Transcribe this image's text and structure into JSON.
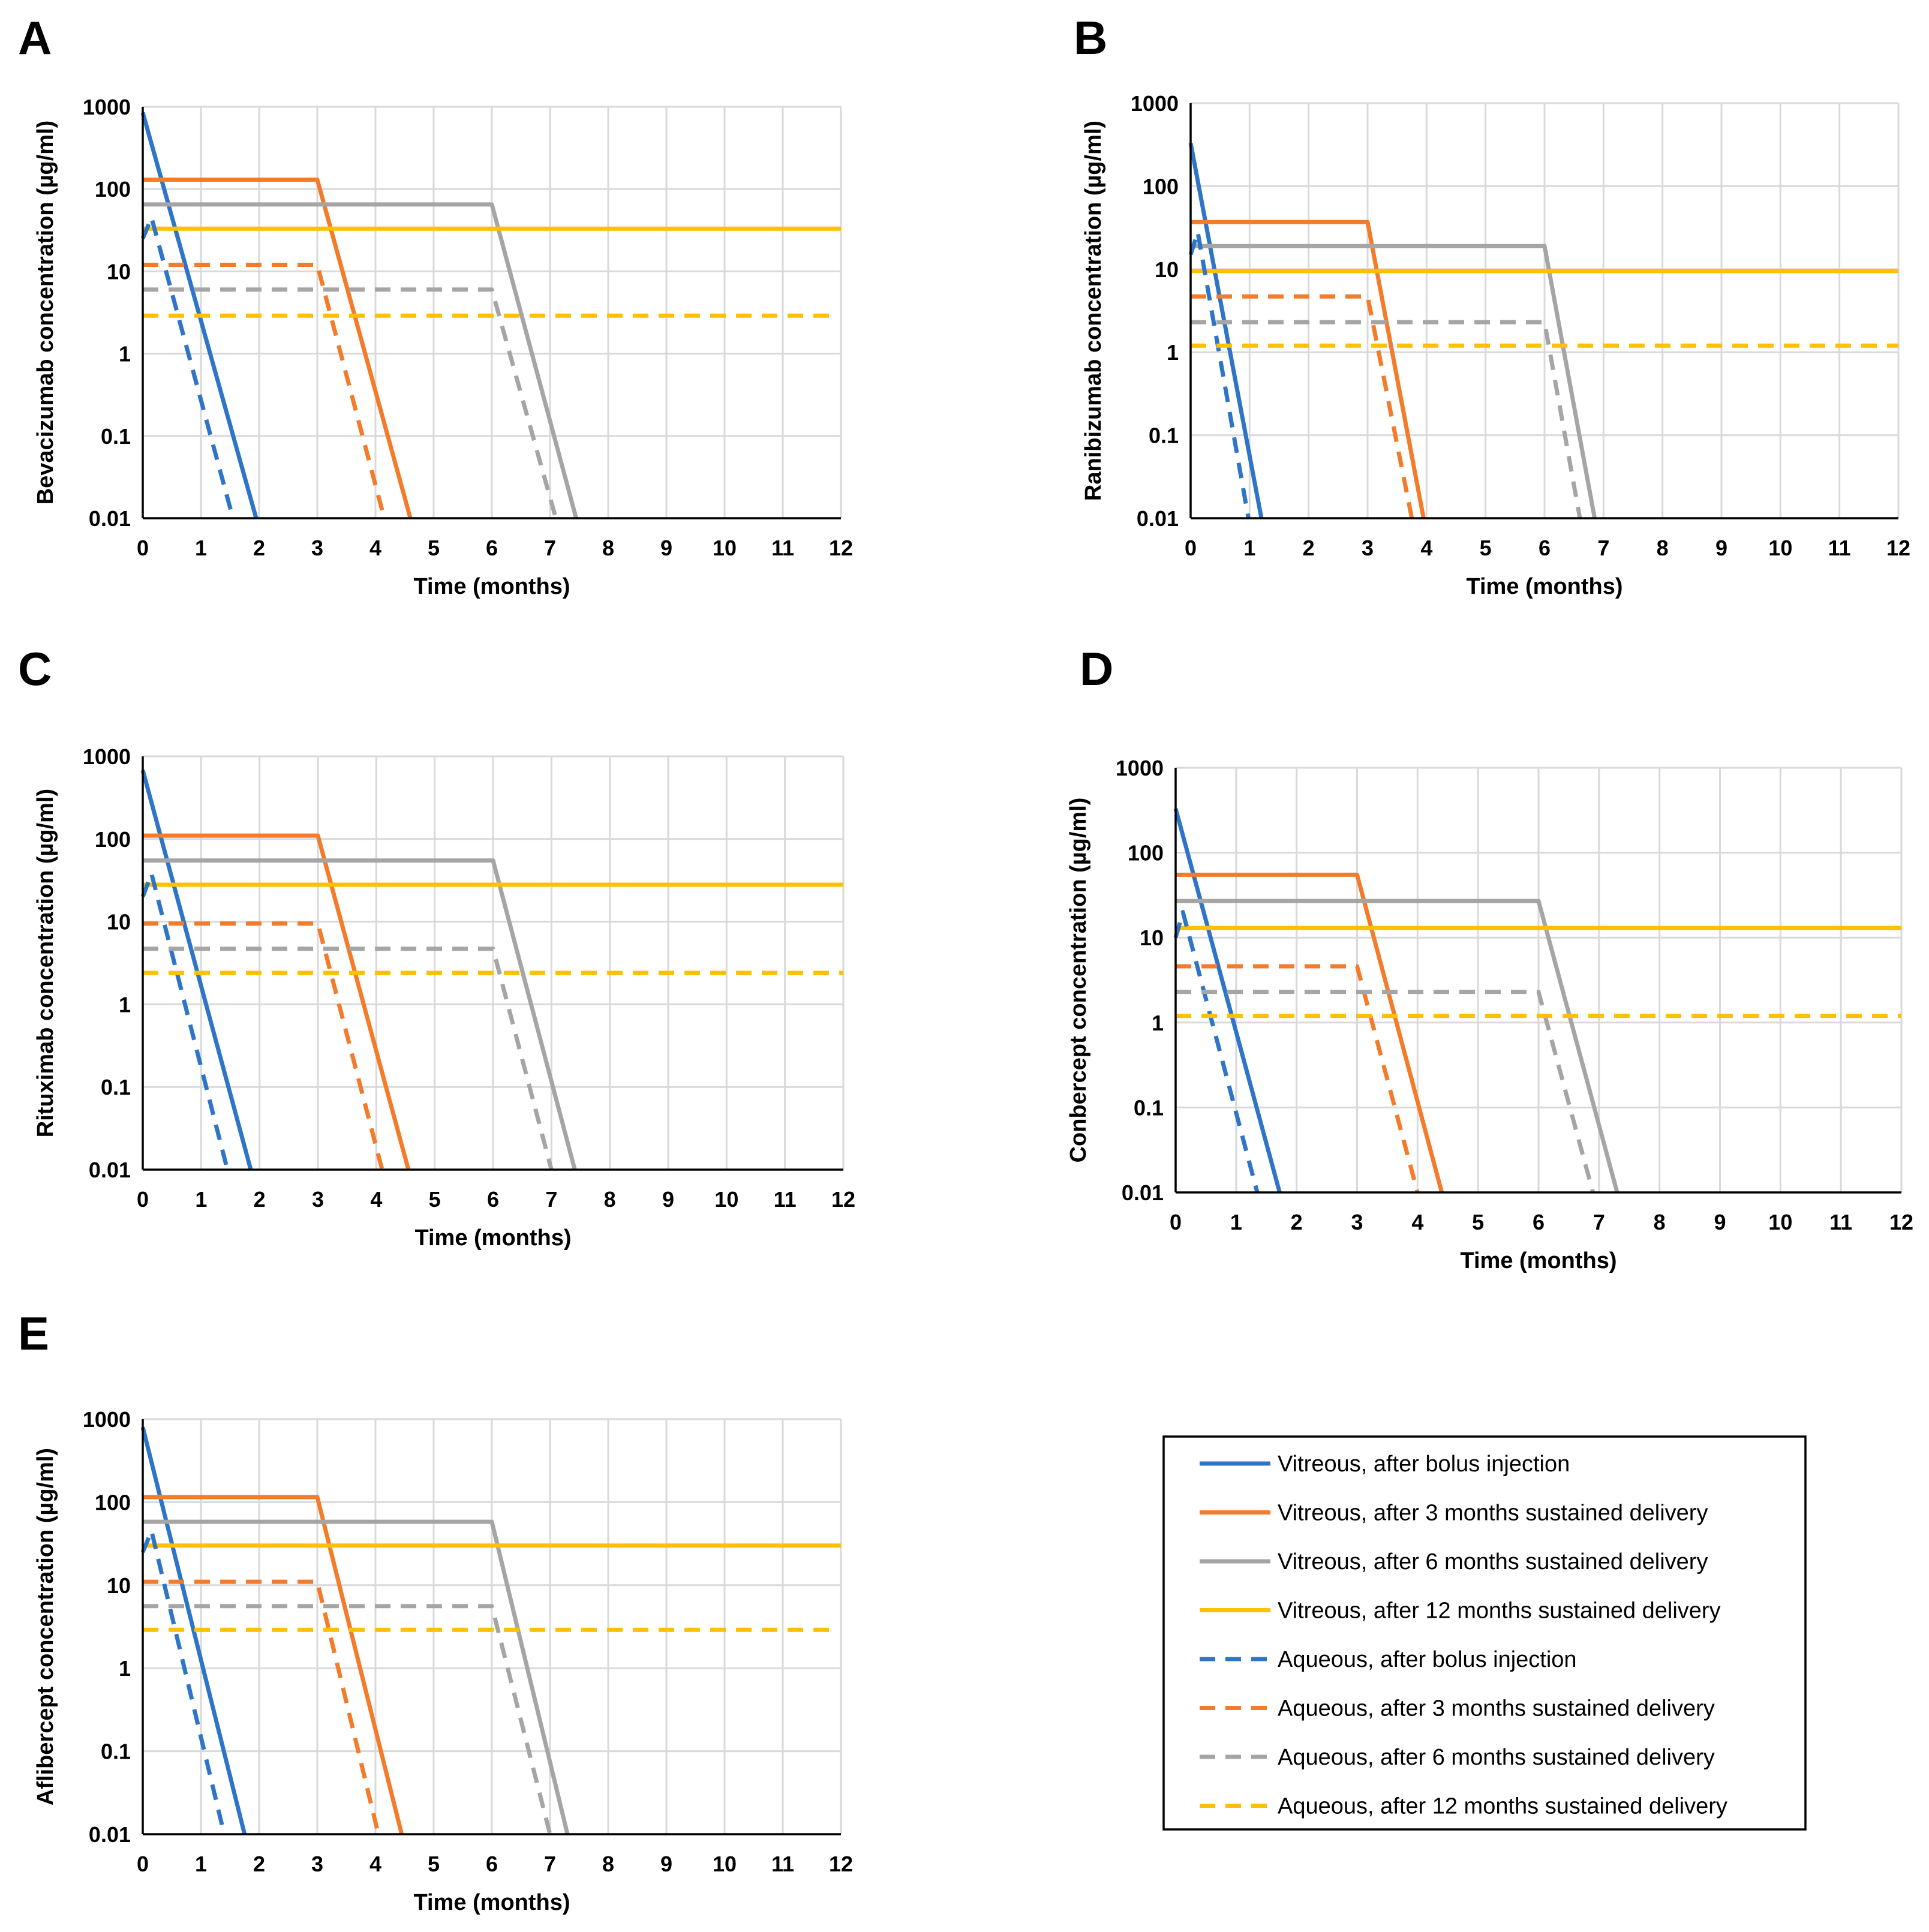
{
  "colors": {
    "blue": "#2e75c8",
    "orange": "#f37b2a",
    "gray": "#a5a5a5",
    "yellow": "#fec000"
  },
  "legend": [
    {
      "label": "Vitreous, after bolus injection",
      "color": "blue",
      "dashed": false
    },
    {
      "label": "Vitreous, after 3 months sustained delivery",
      "color": "orange",
      "dashed": false
    },
    {
      "label": "Vitreous, after 6 months sustained delivery",
      "color": "gray",
      "dashed": false
    },
    {
      "label": "Vitreous, after 12 months sustained delivery",
      "color": "yellow",
      "dashed": false
    },
    {
      "label": "Aqueous, after bolus injection",
      "color": "blue",
      "dashed": true
    },
    {
      "label": "Aqueous, after 3 months sustained delivery",
      "color": "orange",
      "dashed": true
    },
    {
      "label": "Aqueous, after 6 months sustained delivery",
      "color": "gray",
      "dashed": true
    },
    {
      "label": "Aqueous, after 12 months sustained delivery",
      "color": "yellow",
      "dashed": true
    }
  ],
  "chart_data": [
    {
      "panel": "A",
      "type": "line",
      "xlabel": "Time (months)",
      "ylabel": "Bevacizumab concentration (µg/ml)",
      "xlim": [
        0,
        12
      ],
      "ylim": [
        0.01,
        1000
      ],
      "yscale": "log",
      "grid": true,
      "xticks": [
        "0",
        "1",
        "2",
        "3",
        "4",
        "5",
        "6",
        "7",
        "8",
        "9",
        "10",
        "11",
        "12"
      ],
      "yticks": [
        "0.01",
        "0.1",
        "1",
        "10",
        "100",
        "1000"
      ],
      "series": [
        {
          "name": "Vitreous, after bolus injection",
          "x": [
            0,
            1.95
          ],
          "y": [
            850,
            0.01
          ]
        },
        {
          "name": "Vitreous, after 3 months sustained delivery",
          "x": [
            0,
            3,
            4.6
          ],
          "y": [
            130,
            130,
            0.01
          ]
        },
        {
          "name": "Vitreous, after 6 months sustained delivery",
          "x": [
            0,
            6,
            7.45
          ],
          "y": [
            65,
            65,
            0.01
          ]
        },
        {
          "name": "Vitreous, after 12 months sustained delivery",
          "x": [
            0,
            12
          ],
          "y": [
            33,
            33
          ]
        },
        {
          "name": "Aqueous, after bolus injection",
          "x": [
            0,
            0.15,
            1.55
          ],
          "y": [
            25,
            45,
            0.01
          ]
        },
        {
          "name": "Aqueous, after 3 months sustained delivery",
          "x": [
            0,
            3,
            4.15
          ],
          "y": [
            12,
            12,
            0.01
          ]
        },
        {
          "name": "Aqueous, after 6 months sustained delivery",
          "x": [
            0,
            6,
            7.1
          ],
          "y": [
            6,
            6,
            0.01
          ]
        },
        {
          "name": "Aqueous, after 12 months sustained delivery",
          "x": [
            0,
            11.8
          ],
          "y": [
            2.9,
            2.9
          ]
        }
      ]
    },
    {
      "panel": "B",
      "type": "line",
      "xlabel": "Time (months)",
      "ylabel": "Ranibizumab concentration (µg/ml)",
      "xlim": [
        0,
        12
      ],
      "ylim": [
        0.01,
        1000
      ],
      "yscale": "log",
      "grid": true,
      "xticks": [
        "0",
        "1",
        "2",
        "3",
        "4",
        "5",
        "6",
        "7",
        "8",
        "9",
        "10",
        "11",
        "12"
      ],
      "yticks": [
        "0.01",
        "0.1",
        "1",
        "10",
        "100",
        "1000"
      ],
      "series": [
        {
          "name": "Vitreous, after bolus injection",
          "x": [
            0,
            1.2
          ],
          "y": [
            330,
            0.01
          ]
        },
        {
          "name": "Vitreous, after 3 months sustained delivery",
          "x": [
            0,
            3,
            3.95
          ],
          "y": [
            37,
            37,
            0.01
          ]
        },
        {
          "name": "Vitreous, after 6 months sustained delivery",
          "x": [
            0,
            6,
            6.85
          ],
          "y": [
            19,
            19,
            0.01
          ]
        },
        {
          "name": "Vitreous, after 12 months sustained delivery",
          "x": [
            0,
            12
          ],
          "y": [
            9.5,
            9.5
          ]
        },
        {
          "name": "Aqueous, after bolus injection",
          "x": [
            0,
            0.12,
            0.98
          ],
          "y": [
            15,
            28,
            0.01
          ]
        },
        {
          "name": "Aqueous, after 3 months sustained delivery",
          "x": [
            0,
            3,
            3.75
          ],
          "y": [
            4.7,
            4.7,
            0.01
          ]
        },
        {
          "name": "Aqueous, after 6 months sustained delivery",
          "x": [
            0,
            6,
            6.6
          ],
          "y": [
            2.3,
            2.3,
            0.01
          ]
        },
        {
          "name": "Aqueous, after 12 months sustained delivery",
          "x": [
            0,
            12
          ],
          "y": [
            1.2,
            1.2
          ]
        }
      ]
    },
    {
      "panel": "C",
      "type": "line",
      "xlabel": "Time (months)",
      "ylabel": "Rituximab concentration (µg/ml)",
      "xlim": [
        0,
        12
      ],
      "ylim": [
        0.01,
        1000
      ],
      "yscale": "log",
      "grid": true,
      "xticks": [
        "0",
        "1",
        "2",
        "3",
        "4",
        "5",
        "6",
        "7",
        "8",
        "9",
        "10",
        "11",
        "12"
      ],
      "yticks": [
        "0.01",
        "0.1",
        "1",
        "10",
        "100",
        "1000"
      ],
      "series": [
        {
          "name": "Vitreous, after bolus injection",
          "x": [
            0,
            1.85
          ],
          "y": [
            680,
            0.01
          ]
        },
        {
          "name": "Vitreous, after 3 months sustained delivery",
          "x": [
            0,
            3,
            4.55
          ],
          "y": [
            110,
            110,
            0.01
          ]
        },
        {
          "name": "Vitreous, after 6 months sustained delivery",
          "x": [
            0,
            6,
            7.4
          ],
          "y": [
            55,
            55,
            0.01
          ]
        },
        {
          "name": "Vitreous, after 12 months sustained delivery",
          "x": [
            0,
            12
          ],
          "y": [
            28,
            28
          ]
        },
        {
          "name": "Aqueous, after bolus injection",
          "x": [
            0,
            0.15,
            1.45
          ],
          "y": [
            20,
            38,
            0.01
          ]
        },
        {
          "name": "Aqueous, after 3 months sustained delivery",
          "x": [
            0,
            3,
            4.1
          ],
          "y": [
            9.5,
            9.5,
            0.01
          ]
        },
        {
          "name": "Aqueous, after 6 months sustained delivery",
          "x": [
            0,
            6,
            7.0
          ],
          "y": [
            4.7,
            4.7,
            0.01
          ]
        },
        {
          "name": "Aqueous, after 12 months sustained delivery",
          "x": [
            0,
            12
          ],
          "y": [
            2.4,
            2.4
          ]
        }
      ]
    },
    {
      "panel": "D",
      "type": "line",
      "xlabel": "Time (months)",
      "ylabel": "Conbercept concentration (µg/ml)",
      "xlim": [
        0,
        12
      ],
      "ylim": [
        0.01,
        1000
      ],
      "yscale": "log",
      "grid": true,
      "xticks": [
        "0",
        "1",
        "2",
        "3",
        "4",
        "5",
        "6",
        "7",
        "8",
        "9",
        "10",
        "11",
        "12"
      ],
      "yticks": [
        "0.01",
        "0.1",
        "1",
        "10",
        "100",
        "1000"
      ],
      "series": [
        {
          "name": "Vitreous, after bolus injection",
          "x": [
            0,
            1.72
          ],
          "y": [
            330,
            0.01
          ]
        },
        {
          "name": "Vitreous, after 3 months sustained delivery",
          "x": [
            0,
            3,
            4.4
          ],
          "y": [
            55,
            55,
            0.01
          ]
        },
        {
          "name": "Vitreous, after 6 months sustained delivery",
          "x": [
            0,
            6,
            7.3
          ],
          "y": [
            27,
            27,
            0.01
          ]
        },
        {
          "name": "Vitreous, after 12 months sustained delivery",
          "x": [
            0,
            12
          ],
          "y": [
            13,
            13
          ]
        },
        {
          "name": "Aqueous, after bolus injection",
          "x": [
            0,
            0.12,
            1.35
          ],
          "y": [
            10,
            20,
            0.01
          ]
        },
        {
          "name": "Aqueous, after 3 months sustained delivery",
          "x": [
            0,
            3,
            4.0
          ],
          "y": [
            4.6,
            4.6,
            0.01
          ]
        },
        {
          "name": "Aqueous, after 6 months sustained delivery",
          "x": [
            0,
            6,
            6.9
          ],
          "y": [
            2.3,
            2.3,
            0.01
          ]
        },
        {
          "name": "Aqueous, after 12 months sustained delivery",
          "x": [
            0,
            12
          ],
          "y": [
            1.2,
            1.2
          ]
        }
      ]
    },
    {
      "panel": "E",
      "type": "line",
      "xlabel": "Time (months)",
      "ylabel": "Aflibercept concentration (µg/ml)",
      "xlim": [
        0,
        12
      ],
      "ylim": [
        0.01,
        1000
      ],
      "yscale": "log",
      "grid": true,
      "xticks": [
        "0",
        "1",
        "2",
        "3",
        "4",
        "5",
        "6",
        "7",
        "8",
        "9",
        "10",
        "11",
        "12"
      ],
      "yticks": [
        "0.01",
        "0.1",
        "1",
        "10",
        "100",
        "1000"
      ],
      "series": [
        {
          "name": "Vitreous, after bolus injection",
          "x": [
            0,
            1.75
          ],
          "y": [
            800,
            0.01
          ]
        },
        {
          "name": "Vitreous, after 3 months sustained delivery",
          "x": [
            0,
            3,
            4.45
          ],
          "y": [
            115,
            115,
            0.01
          ]
        },
        {
          "name": "Vitreous, after 6 months sustained delivery",
          "x": [
            0,
            6,
            7.3
          ],
          "y": [
            58,
            58,
            0.01
          ]
        },
        {
          "name": "Vitreous, after 12 months sustained delivery",
          "x": [
            0,
            12
          ],
          "y": [
            30,
            30
          ]
        },
        {
          "name": "Aqueous, after bolus injection",
          "x": [
            0,
            0.15,
            1.4
          ],
          "y": [
            25,
            45,
            0.01
          ]
        },
        {
          "name": "Aqueous, after 3 months sustained delivery",
          "x": [
            0,
            3,
            4.05
          ],
          "y": [
            11,
            11,
            0.01
          ]
        },
        {
          "name": "Aqueous, after 6 months sustained delivery",
          "x": [
            0,
            6,
            7.0
          ],
          "y": [
            5.6,
            5.6,
            0.01
          ]
        },
        {
          "name": "Aqueous, after 12 months sustained delivery",
          "x": [
            0,
            11.8
          ],
          "y": [
            2.9,
            2.9
          ]
        }
      ]
    }
  ]
}
